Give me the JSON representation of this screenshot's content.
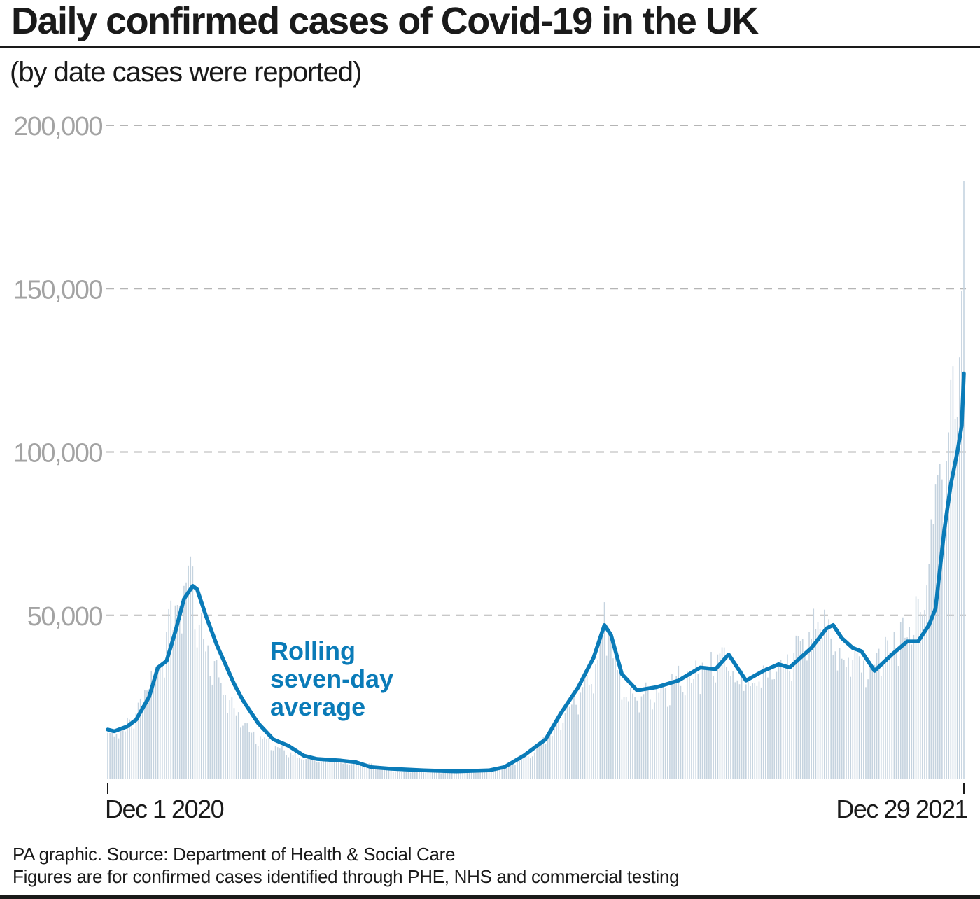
{
  "title": "Daily confirmed cases of Covid-19 in the UK",
  "subtitle": "(by date cases were reported)",
  "footer": {
    "source": "PA graphic. Source: Department of Health & Social Care",
    "note": "Figures are for confirmed cases identified through PHE, NHS and commercial testing"
  },
  "colors": {
    "bars": "#c5d3df",
    "line": "#0a7bb8",
    "grid": "#b5b5b5",
    "tick_label": "#a3a3a3",
    "text": "#1a1a1a"
  },
  "chart_data": {
    "type": "bar",
    "overlay": "line",
    "y_range": [
      0,
      200000
    ],
    "y_ticks": [
      "200,000",
      "150,000",
      "100,000",
      "50,000"
    ],
    "y_tick_values": [
      200000,
      150000,
      100000,
      50000
    ],
    "x_range": [
      "2020-12-01",
      "2021-12-29"
    ],
    "x_tick_labels": [
      "Dec 1 2020",
      "Dec 29 2021"
    ],
    "annotation": [
      "Rolling",
      "seven-day",
      "average"
    ],
    "grid": "horizontal dashed",
    "bar_series": {
      "description": "daily cases (bars)",
      "points": [
        [
          "2020-12-01",
          14000
        ],
        [
          "2020-12-07",
          15000
        ],
        [
          "2020-12-14",
          20000
        ],
        [
          "2020-12-21",
          33000
        ],
        [
          "2020-12-25",
          35000
        ],
        [
          "2020-12-28",
          45000
        ],
        [
          "2021-01-01",
          53000
        ],
        [
          "2021-01-05",
          59000
        ],
        [
          "2021-01-08",
          68000
        ],
        [
          "2021-01-12",
          47000
        ],
        [
          "2021-01-19",
          36000
        ],
        [
          "2021-01-26",
          24000
        ],
        [
          "2021-02-02",
          17000
        ],
        [
          "2021-02-09",
          13000
        ],
        [
          "2021-02-16",
          10000
        ],
        [
          "2021-02-23",
          8000
        ],
        [
          "2021-03-02",
          6000
        ],
        [
          "2021-03-16",
          5500
        ],
        [
          "2021-03-30",
          4500
        ],
        [
          "2021-04-13",
          2500
        ],
        [
          "2021-05-11",
          2000
        ],
        [
          "2021-06-01",
          3500
        ],
        [
          "2021-06-15",
          8000
        ],
        [
          "2021-06-29",
          20000
        ],
        [
          "2021-07-13",
          35000
        ],
        [
          "2021-07-17",
          54000
        ],
        [
          "2021-07-27",
          25000
        ],
        [
          "2021-08-10",
          28000
        ],
        [
          "2021-08-24",
          33000
        ],
        [
          "2021-09-07",
          38000
        ],
        [
          "2021-09-21",
          30000
        ],
        [
          "2021-10-05",
          35000
        ],
        [
          "2021-10-19",
          45000
        ],
        [
          "2021-10-21",
          52000
        ],
        [
          "2021-11-02",
          40000
        ],
        [
          "2021-11-16",
          36000
        ],
        [
          "2021-11-30",
          48000
        ],
        [
          "2021-12-09",
          51000
        ],
        [
          "2021-12-15",
          78000
        ],
        [
          "2021-12-17",
          93000
        ],
        [
          "2021-12-22",
          106000
        ],
        [
          "2021-12-23",
          122000
        ],
        [
          "2021-12-27",
          129000
        ],
        [
          "2021-12-29",
          183000
        ]
      ]
    },
    "line_series": {
      "name": "Rolling seven-day average",
      "points": [
        [
          "2020-12-01",
          15000
        ],
        [
          "2020-12-04",
          14500
        ],
        [
          "2020-12-10",
          16000
        ],
        [
          "2020-12-14",
          18000
        ],
        [
          "2020-12-20",
          25000
        ],
        [
          "2020-12-24",
          34000
        ],
        [
          "2020-12-28",
          36000
        ],
        [
          "2021-01-01",
          45000
        ],
        [
          "2021-01-05",
          55000
        ],
        [
          "2021-01-09",
          59000
        ],
        [
          "2021-01-11",
          58000
        ],
        [
          "2021-01-15",
          50000
        ],
        [
          "2021-01-20",
          41000
        ],
        [
          "2021-01-28",
          29000
        ],
        [
          "2021-02-01",
          24000
        ],
        [
          "2021-02-08",
          17000
        ],
        [
          "2021-02-15",
          12000
        ],
        [
          "2021-02-22",
          10000
        ],
        [
          "2021-03-01",
          7000
        ],
        [
          "2021-03-07",
          6000
        ],
        [
          "2021-03-18",
          5500
        ],
        [
          "2021-03-25",
          5000
        ],
        [
          "2021-04-01",
          3500
        ],
        [
          "2021-04-10",
          3000
        ],
        [
          "2021-04-25",
          2500
        ],
        [
          "2021-05-10",
          2200
        ],
        [
          "2021-05-25",
          2500
        ],
        [
          "2021-06-01",
          3500
        ],
        [
          "2021-06-10",
          7000
        ],
        [
          "2021-06-20",
          12000
        ],
        [
          "2021-06-27",
          20000
        ],
        [
          "2021-07-05",
          28000
        ],
        [
          "2021-07-12",
          37000
        ],
        [
          "2021-07-17",
          47000
        ],
        [
          "2021-07-20",
          44000
        ],
        [
          "2021-07-25",
          32000
        ],
        [
          "2021-08-01",
          27000
        ],
        [
          "2021-08-10",
          28000
        ],
        [
          "2021-08-20",
          30000
        ],
        [
          "2021-08-30",
          34000
        ],
        [
          "2021-09-06",
          33500
        ],
        [
          "2021-09-12",
          38000
        ],
        [
          "2021-09-20",
          30000
        ],
        [
          "2021-09-28",
          33000
        ],
        [
          "2021-10-05",
          35000
        ],
        [
          "2021-10-10",
          34000
        ],
        [
          "2021-10-20",
          40000
        ],
        [
          "2021-10-27",
          46000
        ],
        [
          "2021-10-30",
          47000
        ],
        [
          "2021-11-03",
          43000
        ],
        [
          "2021-11-08",
          40000
        ],
        [
          "2021-11-12",
          39000
        ],
        [
          "2021-11-18",
          33000
        ],
        [
          "2021-11-26",
          38000
        ],
        [
          "2021-12-03",
          42000
        ],
        [
          "2021-12-08",
          42000
        ],
        [
          "2021-12-13",
          47000
        ],
        [
          "2021-12-16",
          52000
        ],
        [
          "2021-12-20",
          76000
        ],
        [
          "2021-12-23",
          90000
        ],
        [
          "2021-12-26",
          100000
        ],
        [
          "2021-12-28",
          108000
        ],
        [
          "2021-12-29",
          124000
        ]
      ]
    }
  }
}
